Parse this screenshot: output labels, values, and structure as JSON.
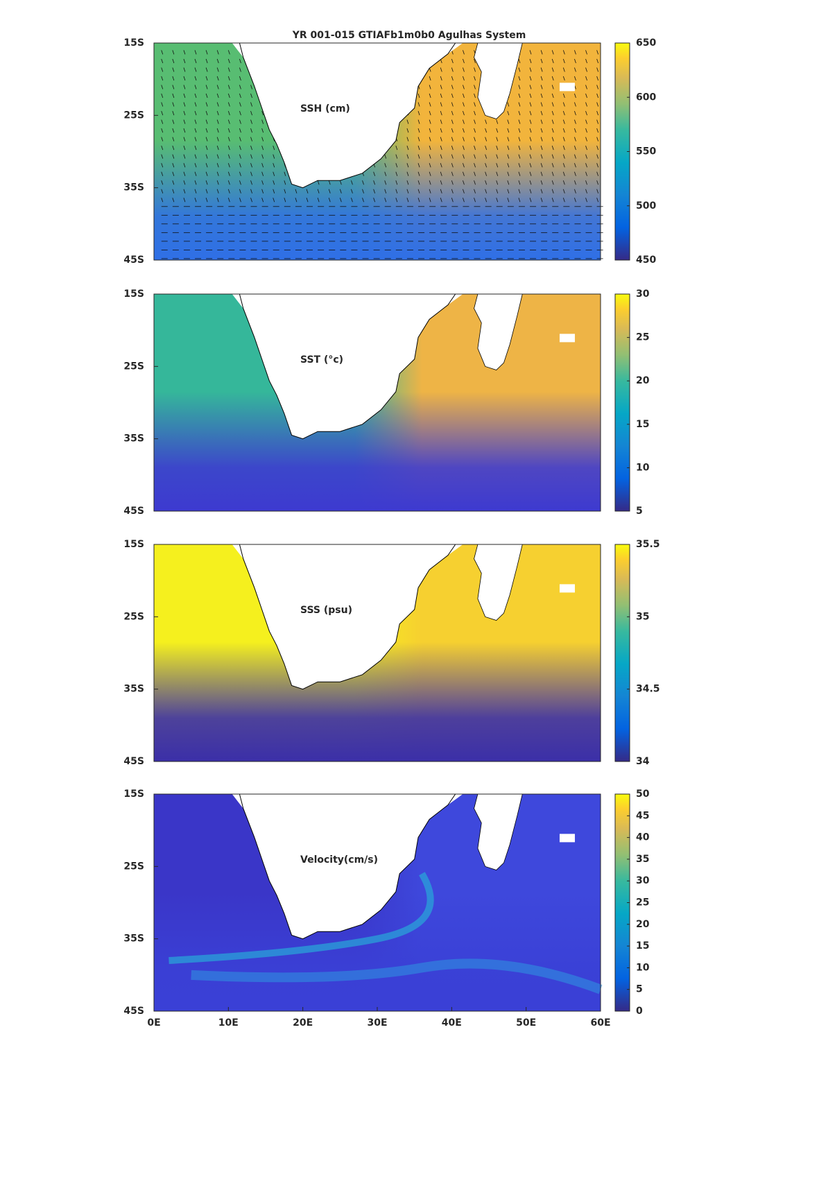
{
  "title": "YR 001-015 GTIAFb1m0b0 Agulhas System",
  "chart_data": [
    {
      "type": "heatmap",
      "label": "SSH (cm)",
      "xlim": [
        0,
        60
      ],
      "ylim": [
        -45,
        -15
      ],
      "yticks": [
        {
          "value": -15,
          "label": "15S"
        },
        {
          "value": -25,
          "label": "25S"
        },
        {
          "value": -35,
          "label": "35S"
        },
        {
          "value": -45,
          "label": "45S"
        }
      ],
      "clim": [
        450,
        650
      ],
      "cticks": [
        450,
        500,
        550,
        600,
        650
      ],
      "vectors": true,
      "colors": {
        "west": "#58bd72",
        "east": "#f2b43c",
        "south": "#2f6fe6"
      }
    },
    {
      "type": "heatmap",
      "label": "SST (°c)",
      "xlim": [
        0,
        60
      ],
      "ylim": [
        -45,
        -15
      ],
      "yticks": [
        {
          "value": -15,
          "label": "15S"
        },
        {
          "value": -25,
          "label": "25S"
        },
        {
          "value": -35,
          "label": "35S"
        },
        {
          "value": -45,
          "label": "45S"
        }
      ],
      "clim": [
        5,
        30
      ],
      "cticks": [
        5,
        10,
        15,
        20,
        25,
        30
      ],
      "colors": {
        "west": "#35b79a",
        "east": "#eeb446",
        "south": "#3d3ad0"
      }
    },
    {
      "type": "heatmap",
      "label": "SSS (psu)",
      "xlim": [
        0,
        60
      ],
      "ylim": [
        -45,
        -15
      ],
      "yticks": [
        {
          "value": -15,
          "label": "15S"
        },
        {
          "value": -25,
          "label": "25S"
        },
        {
          "value": -35,
          "label": "35S"
        },
        {
          "value": -45,
          "label": "45S"
        }
      ],
      "clim": [
        34,
        35.5
      ],
      "cticks": [
        34,
        34.5,
        35,
        35.5
      ],
      "colors": {
        "west": "#f5f01e",
        "east": "#f6d030",
        "south": "#3b2fa8"
      }
    },
    {
      "type": "heatmap",
      "label": "Velocity(cm/s)",
      "xlim": [
        0,
        60
      ],
      "ylim": [
        -45,
        -15
      ],
      "xticks": [
        {
          "value": 0,
          "label": "0E"
        },
        {
          "value": 10,
          "label": "10E"
        },
        {
          "value": 20,
          "label": "20E"
        },
        {
          "value": 30,
          "label": "30E"
        },
        {
          "value": 40,
          "label": "40E"
        },
        {
          "value": 50,
          "label": "50E"
        },
        {
          "value": 60,
          "label": "60E"
        }
      ],
      "yticks": [
        {
          "value": -15,
          "label": "15S"
        },
        {
          "value": -25,
          "label": "25S"
        },
        {
          "value": -35,
          "label": "35S"
        },
        {
          "value": -45,
          "label": "45S"
        }
      ],
      "clim": [
        0,
        50
      ],
      "cticks": [
        0,
        5,
        10,
        15,
        20,
        25,
        30,
        35,
        40,
        45,
        50
      ],
      "jet": true,
      "colors": {
        "west": "#3a36c8",
        "east": "#3e48dc",
        "south": "#3a40d6"
      }
    }
  ]
}
